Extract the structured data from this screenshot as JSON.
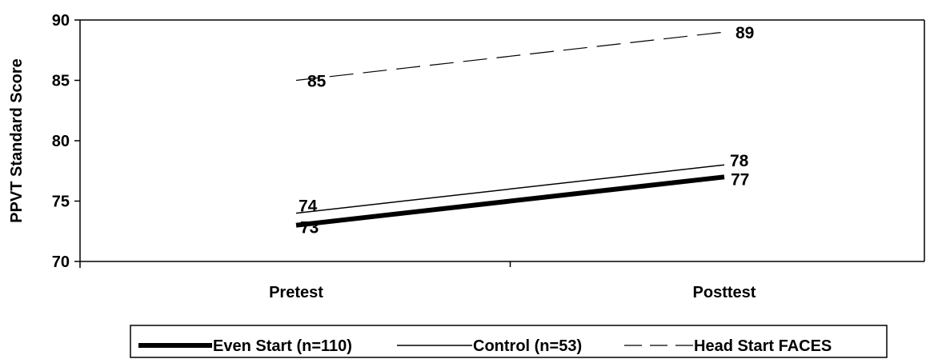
{
  "chart_data": {
    "type": "line",
    "title": "",
    "xlabel": "",
    "ylabel": "PPVT Standard Score",
    "categories": [
      "Pretest",
      "Posttest"
    ],
    "ylim": [
      70,
      90
    ],
    "yticks": [
      70,
      75,
      80,
      85,
      90
    ],
    "grid": false,
    "legend_position": "bottom",
    "series": [
      {
        "name": "Even Start (n=110)",
        "values": [
          73,
          77
        ],
        "labels": [
          "73",
          "77"
        ],
        "style": "thick-solid",
        "color": "#000000"
      },
      {
        "name": "Control (n=53)",
        "values": [
          74,
          78
        ],
        "labels": [
          "74",
          "78"
        ],
        "style": "thin-solid",
        "color": "#000000"
      },
      {
        "name": "Head Start FACES",
        "values": [
          85,
          89
        ],
        "labels": [
          "85",
          "89"
        ],
        "style": "dashed",
        "color": "#000000"
      }
    ]
  }
}
